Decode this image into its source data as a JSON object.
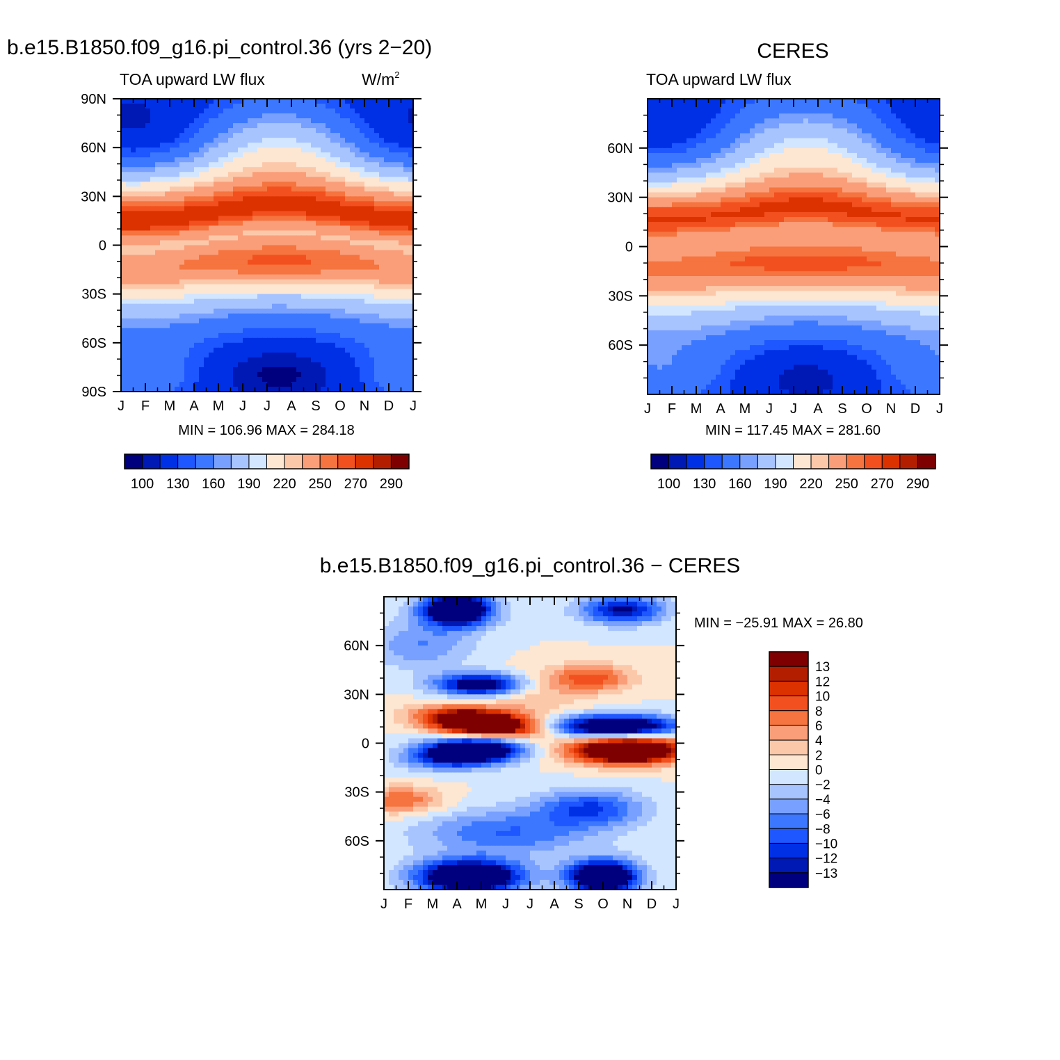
{
  "chart_data": [
    {
      "type": "heatmap",
      "id": "model",
      "title": "b.e15.B1850.f09_g16.pi_control.36 (yrs 2-20)",
      "subtitle_left": "TOA upward LW flux",
      "units": "W/m",
      "units_sup": "2",
      "x_tick_labels": [
        "J",
        "F",
        "M",
        "A",
        "M",
        "J",
        "J",
        "A",
        "S",
        "O",
        "N",
        "D",
        "J"
      ],
      "y_tick_labels": [
        "90N",
        "60N",
        "30N",
        "0",
        "30S",
        "60S",
        "90S"
      ],
      "y_ticks_deg": [
        90,
        60,
        30,
        0,
        -30,
        -60,
        -90
      ],
      "ylim": [
        -90,
        90
      ],
      "stats_text": "MIN = 106.96 MAX = 284.18",
      "min": 106.96,
      "max": 284.18,
      "levels": [
        100,
        110,
        130,
        140,
        160,
        170,
        190,
        200,
        220,
        230,
        250,
        260,
        270,
        280,
        290
      ],
      "level_labels": [
        "100",
        "130",
        "160",
        "190",
        "220",
        "250",
        "270",
        "290"
      ],
      "colors": [
        "#00007f",
        "#0018b4",
        "#0030e6",
        "#1e56ff",
        "#3c78ff",
        "#78a0ff",
        "#a8c4ff",
        "#d2e6ff",
        "#fde6d2",
        "#fcc8aa",
        "#fa9e7a",
        "#f5743f",
        "#f2501e",
        "#dc3200",
        "#b41e00",
        "#7f0000"
      ]
    },
    {
      "type": "heatmap",
      "id": "obs",
      "title": "CERES",
      "subtitle_left": "TOA upward LW flux",
      "x_tick_labels": [
        "J",
        "F",
        "M",
        "A",
        "M",
        "J",
        "J",
        "A",
        "S",
        "O",
        "N",
        "D",
        "J"
      ],
      "y_tick_labels": [
        "60N",
        "30N",
        "0",
        "30S",
        "60S"
      ],
      "y_ticks_deg": [
        60,
        30,
        0,
        -30,
        -60
      ],
      "ylim": [
        -90,
        90
      ],
      "stats_text": "MIN = 117.45 MAX = 281.60",
      "min": 117.45,
      "max": 281.6,
      "levels": [
        100,
        110,
        130,
        140,
        160,
        170,
        190,
        200,
        220,
        230,
        250,
        260,
        270,
        280,
        290
      ],
      "level_labels": [
        "100",
        "130",
        "160",
        "190",
        "220",
        "250",
        "270",
        "290"
      ],
      "colors": [
        "#00007f",
        "#0018b4",
        "#0030e6",
        "#1e56ff",
        "#3c78ff",
        "#78a0ff",
        "#a8c4ff",
        "#d2e6ff",
        "#fde6d2",
        "#fcc8aa",
        "#fa9e7a",
        "#f5743f",
        "#f2501e",
        "#dc3200",
        "#b41e00",
        "#7f0000"
      ]
    },
    {
      "type": "heatmap",
      "id": "diff",
      "title": "b.e15.B1850.f09_g16.pi_control.36 - CERES",
      "x_tick_labels": [
        "J",
        "F",
        "M",
        "A",
        "M",
        "J",
        "J",
        "A",
        "S",
        "O",
        "N",
        "D",
        "J"
      ],
      "y_tick_labels": [
        "60N",
        "30N",
        "0",
        "30S",
        "60S"
      ],
      "y_ticks_deg": [
        60,
        30,
        0,
        -30,
        -60
      ],
      "ylim": [
        -90,
        90
      ],
      "stats_text": "MIN = -25.91 MAX =  26.80",
      "min": -25.91,
      "max": 26.8,
      "levels": [
        -13,
        -12,
        -10,
        -8,
        -6,
        -4,
        -2,
        0,
        2,
        4,
        6,
        8,
        10,
        12,
        13
      ],
      "level_labels": [
        "13",
        "12",
        "10",
        "8",
        "6",
        "4",
        "2",
        "0",
        "-2",
        "-4",
        "-6",
        "-8",
        "-10",
        "-12",
        "-13"
      ],
      "colors": [
        "#00007f",
        "#0018b4",
        "#0030e6",
        "#1e56ff",
        "#3c78ff",
        "#78a0ff",
        "#a8c4ff",
        "#d2e6ff",
        "#fde6d2",
        "#fcc8aa",
        "#fa9e7a",
        "#f5743f",
        "#f2501e",
        "#dc3200",
        "#b41e00",
        "#7f0000"
      ]
    }
  ]
}
